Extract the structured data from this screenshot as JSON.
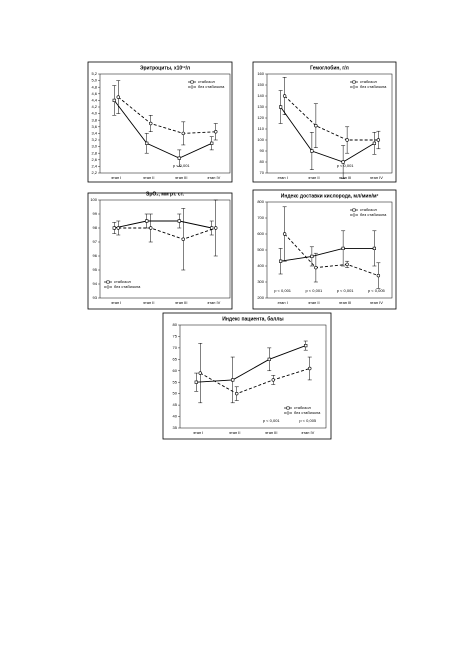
{
  "chart_data": [
    {
      "type": "line",
      "title": "Эритроциты, х10¹²/л",
      "categories": [
        "этап I",
        "этап II",
        "этап III",
        "этап IV"
      ],
      "series": [
        {
          "name": "стабизол",
          "color": "#000000",
          "dash": false,
          "marker": "square",
          "values": [
            4.4,
            3.1,
            2.65,
            3.1
          ],
          "errors": [
            0.45,
            0.3,
            0.25,
            0.2
          ]
        },
        {
          "name": "без стабизола",
          "color": "#000000",
          "dash": true,
          "marker": "circle",
          "values": [
            4.5,
            3.7,
            3.4,
            3.45
          ],
          "errors": [
            0.5,
            0.25,
            0.35,
            0.25
          ]
        }
      ],
      "ylim": [
        2.2,
        5.2
      ],
      "yticks": [
        {
          "value": 2.2,
          "label": "2,2"
        },
        {
          "value": 2.4,
          "label": "2,4"
        },
        {
          "value": 2.6,
          "label": "2,6"
        },
        {
          "value": 2.8,
          "label": "2,8"
        },
        {
          "value": 3.0,
          "label": "3,0"
        },
        {
          "value": 3.2,
          "label": "3,2"
        },
        {
          "value": 3.4,
          "label": "3,4"
        },
        {
          "value": 3.6,
          "label": "3,6"
        },
        {
          "value": 3.8,
          "label": "3,8"
        },
        {
          "value": 4.0,
          "label": "4,0"
        },
        {
          "value": 4.2,
          "label": "4,2"
        },
        {
          "value": 4.4,
          "label": "4,4"
        },
        {
          "value": 4.6,
          "label": "4,6"
        },
        {
          "value": 4.8,
          "label": "4,8"
        },
        {
          "value": 5.0,
          "label": "5,0"
        },
        {
          "value": 5.2,
          "label": "5,2"
        }
      ],
      "p_values": [
        null,
        null,
        "p < 0,001",
        null
      ],
      "legend": "top-right"
    },
    {
      "type": "line",
      "title": "Гемоглобин, г/л",
      "categories": [
        "этап I",
        "этап II",
        "этап III",
        "этап IV"
      ],
      "series": [
        {
          "name": "стабизол",
          "color": "#000000",
          "dash": false,
          "marker": "square",
          "values": [
            130,
            90,
            80,
            97
          ],
          "errors": [
            15,
            17,
            15,
            10
          ]
        },
        {
          "name": "без стабизола",
          "color": "#000000",
          "dash": true,
          "marker": "circle",
          "values": [
            140,
            113,
            100,
            100
          ],
          "errors": [
            17,
            20,
            12,
            8
          ]
        }
      ],
      "ylim": [
        70,
        160
      ],
      "yticks": [
        70,
        80,
        90,
        100,
        110,
        120,
        130,
        140,
        150,
        160
      ],
      "p_values": [
        null,
        null,
        "p < 0,001",
        null
      ],
      "legend": "top-right"
    },
    {
      "type": "line",
      "title": "SpO₂, мм рт. ст.",
      "categories": [
        "этап I",
        "этап II",
        "этап III",
        "этап IV"
      ],
      "series": [
        {
          "name": "стабизол",
          "color": "#000000",
          "dash": false,
          "marker": "square",
          "values": [
            98,
            98.5,
            98.5,
            98
          ],
          "errors": [
            0.4,
            0.5,
            0.5,
            0.5
          ]
        },
        {
          "name": "без стабизола",
          "color": "#000000",
          "dash": true,
          "marker": "circle",
          "values": [
            98,
            98,
            97.2,
            98
          ],
          "errors": [
            0.5,
            1,
            2.2,
            2
          ]
        }
      ],
      "ylim": [
        93,
        100
      ],
      "yticks": [
        93,
        94,
        95,
        96,
        97,
        98,
        99,
        100
      ],
      "p_values": [
        null,
        null,
        null,
        null
      ],
      "legend": "bottom-left"
    },
    {
      "type": "line",
      "title": "Индекс доставки кислорода, мл/мин/м²",
      "categories": [
        "этап I",
        "этап II",
        "этап III",
        "этап IV"
      ],
      "series": [
        {
          "name": "стабизол",
          "color": "#000000",
          "dash": false,
          "marker": "square",
          "values": [
            430,
            460,
            510,
            510
          ],
          "errors": [
            80,
            60,
            110,
            110
          ]
        },
        {
          "name": "без стабизола",
          "color": "#000000",
          "dash": true,
          "marker": "circle",
          "values": [
            600,
            390,
            410,
            340
          ],
          "errors": [
            170,
            90,
            20,
            80
          ]
        }
      ],
      "ylim": [
        200,
        800
      ],
      "yticks": [
        200,
        300,
        400,
        500,
        600,
        700,
        800
      ],
      "p_values": [
        "p < 0,001",
        "p < 0,001",
        "p < 0,001",
        "p < 0,005"
      ],
      "legend": "top-right"
    },
    {
      "type": "line",
      "title": "Индекс пациента, баллы",
      "categories": [
        "этап I",
        "этап II",
        "этап III",
        "этап IV"
      ],
      "series": [
        {
          "name": "стабизол",
          "color": "#000000",
          "dash": false,
          "marker": "square",
          "values": [
            55,
            56,
            65,
            71
          ],
          "errors": [
            4,
            10,
            5,
            2
          ]
        },
        {
          "name": "без стабизола",
          "color": "#000000",
          "dash": true,
          "marker": "circle",
          "values": [
            59,
            50,
            56,
            61
          ],
          "errors": [
            13,
            3,
            2,
            5
          ]
        }
      ],
      "ylim": [
        35,
        80
      ],
      "yticks": [
        35,
        40,
        45,
        50,
        55,
        60,
        65,
        70,
        75,
        80
      ],
      "p_values": [
        null,
        null,
        "p < 0,001",
        "p < 0,005"
      ],
      "legend": "bottom-right"
    }
  ]
}
